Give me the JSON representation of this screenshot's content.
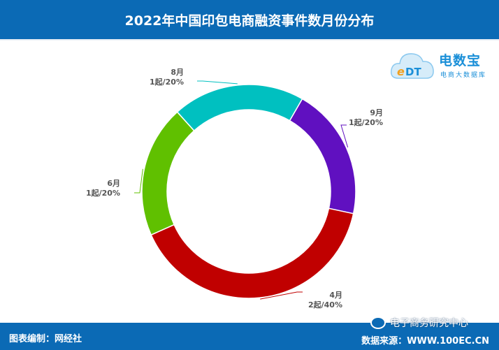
{
  "header": {
    "title": "2022年中国印包电商融资事件数月份分布"
  },
  "logo": {
    "brand": "电数宝",
    "sub": "电商大数据库"
  },
  "footer": {
    "left": "图表编制：网经社",
    "right": "数据来源：WWW.100EC.CN",
    "wechat": "电子商务研究中心"
  },
  "chart_data": {
    "type": "pie",
    "style": "donut",
    "title": "2022年中国印包电商融资事件数月份分布",
    "categories": [
      "9月",
      "4月",
      "6月",
      "8月"
    ],
    "values": [
      1,
      2,
      1,
      1
    ],
    "value_labels": [
      "1起/20%",
      "2起/40%",
      "1起/20%",
      "1起/20%"
    ],
    "percentages": [
      20,
      40,
      20,
      20
    ],
    "colors": [
      "#6010c0",
      "#c00000",
      "#60c000",
      "#00c0c0"
    ],
    "legend": "none"
  }
}
